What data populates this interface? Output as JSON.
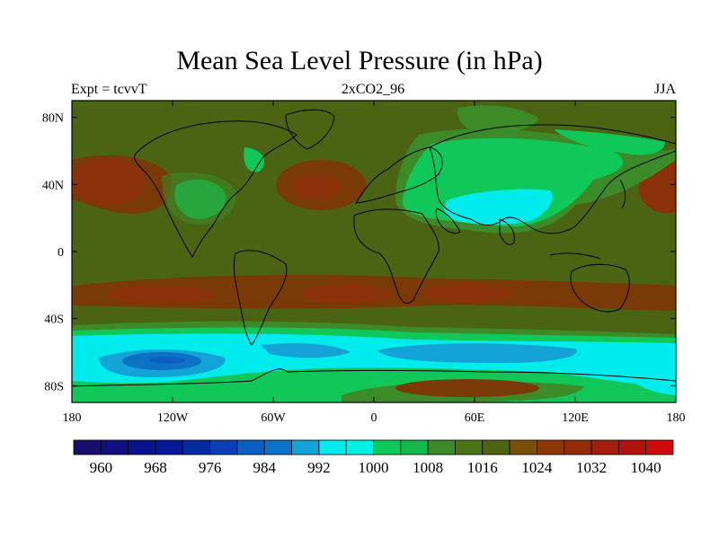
{
  "title": "Mean Sea Level Pressure (in hPa)",
  "subtitle_left": "Expt = tcvvT",
  "subtitle_center": "2xCO2_96",
  "subtitle_right": "JJA",
  "axes": {
    "lon_range": [
      -180,
      180
    ],
    "lat_range": [
      -90,
      90
    ],
    "x_ticks": [
      {
        "lon": -180,
        "label": "180"
      },
      {
        "lon": -120,
        "label": "120W"
      },
      {
        "lon": -60,
        "label": "60W"
      },
      {
        "lon": 0,
        "label": "0"
      },
      {
        "lon": 60,
        "label": "60E"
      },
      {
        "lon": 120,
        "label": "120E"
      },
      {
        "lon": 180,
        "label": "180"
      }
    ],
    "y_ticks": [
      {
        "lat": 80,
        "label": "80N"
      },
      {
        "lat": 40,
        "label": "40N"
      },
      {
        "lat": 0,
        "label": "0"
      },
      {
        "lat": -40,
        "label": "40S"
      },
      {
        "lat": -80,
        "label": "80S"
      }
    ]
  },
  "colorbar": {
    "colors": [
      "#1a0e6b",
      "#10107f",
      "#0a138a",
      "#061894",
      "#052a9e",
      "#0b3eb4",
      "#0c5fc0",
      "#0c72c6",
      "#14a3d6",
      "#00ecec",
      "#00f0e6",
      "#10c85a",
      "#16b64e",
      "#3c8a28",
      "#4a7414",
      "#4c6412",
      "#785006",
      "#8c3806",
      "#922c06",
      "#a41e0e",
      "#b0120e",
      "#d00a0a"
    ],
    "labels": [
      {
        "after_box": 1,
        "label": "960"
      },
      {
        "after_box": 3,
        "label": "968"
      },
      {
        "after_box": 5,
        "label": "976"
      },
      {
        "after_box": 7,
        "label": "984"
      },
      {
        "after_box": 9,
        "label": "992"
      },
      {
        "after_box": 11,
        "label": "1000"
      },
      {
        "after_box": 13,
        "label": "1008"
      },
      {
        "after_box": 15,
        "label": "1016"
      },
      {
        "after_box": 17,
        "label": "1024"
      },
      {
        "after_box": 19,
        "label": "1032"
      },
      {
        "after_box": 21,
        "label": "1040"
      }
    ]
  },
  "field_colors": {
    "background": "#4a6414",
    "high": "#7a3a08",
    "high_core": "#8a300a",
    "mid_green": "#3c8a28",
    "green": "#10c85a",
    "cyan": "#00ecec",
    "light_blue": "#14a3d6",
    "blue": "#0c72c6",
    "coast": "#000000"
  }
}
